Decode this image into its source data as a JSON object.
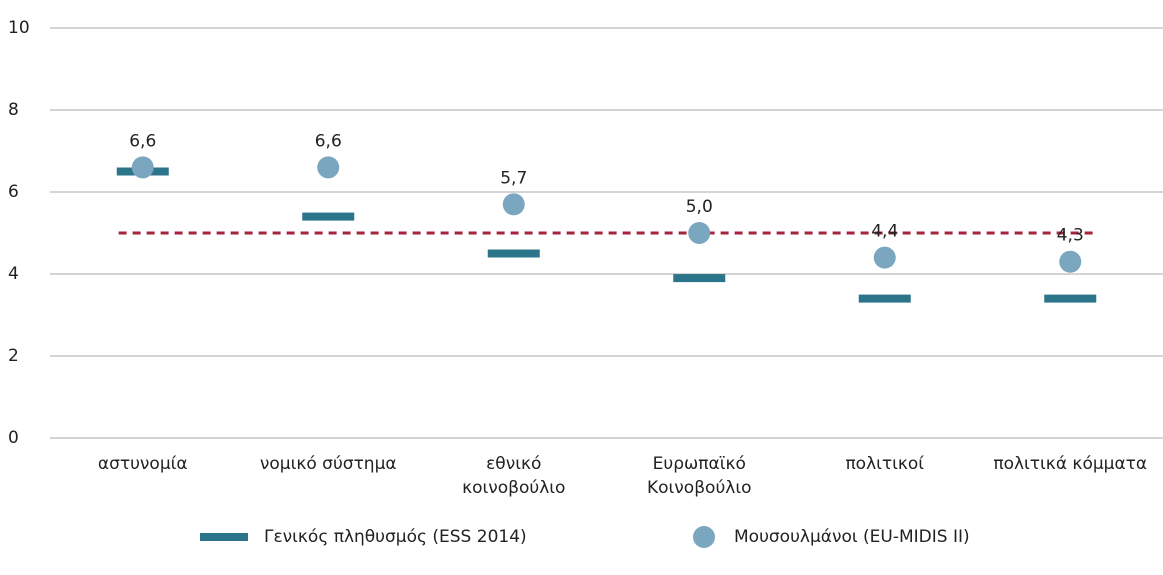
{
  "chart_data": {
    "type": "dot",
    "categories": [
      "αστυνομία",
      "νομικό σύστημα",
      "εθνικό\nκοινοβούλιο",
      "Ευρωπαϊκό\nΚοινοβούλιο",
      "πολιτικοί",
      "πολιτικά κόμματα"
    ],
    "series": [
      {
        "name": "Γενικός πληθυσμός (ESS 2014)",
        "color": "#2b7489",
        "marker": "dash",
        "values": [
          6.5,
          5.4,
          4.5,
          3.9,
          3.4,
          3.4
        ]
      },
      {
        "name": "Μουσουλμάνοι (EU-MIDIS II)",
        "color": "#7ba6bf",
        "marker": "circle",
        "values": [
          6.6,
          6.6,
          5.7,
          5.0,
          4.4,
          4.3
        ],
        "value_labels": [
          "6,6",
          "6,6",
          "5,7",
          "5,0",
          "4,4",
          "4,3"
        ]
      }
    ],
    "reference_line": {
      "value": 5,
      "color": "#a3243b"
    },
    "ylim": [
      0,
      10
    ],
    "yticks": [
      0,
      2,
      4,
      6,
      8,
      10
    ],
    "grid": true,
    "legend": "bottom"
  }
}
